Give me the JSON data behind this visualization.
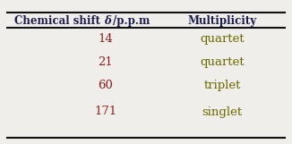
{
  "title_col1_plain": "Chemical shift ",
  "title_col1_delta": "δ",
  "title_col1_slash": "/p.p.m",
  "title_col2": "Multiplicity",
  "shifts": [
    "14",
    "21",
    "60",
    "171"
  ],
  "multiplicities": [
    "quartet",
    "quartet",
    "triplet",
    "singlet"
  ],
  "shift_color": "#8B1A1A",
  "multiplicity_color": "#6B6B00",
  "header_color": "#1C1C50",
  "bg_color": "#f0eeea",
  "line_color": "#111111",
  "header_fontsize": 8.5,
  "data_fontsize": 9.5,
  "figsize": [
    3.26,
    1.61
  ],
  "dpi": 100
}
